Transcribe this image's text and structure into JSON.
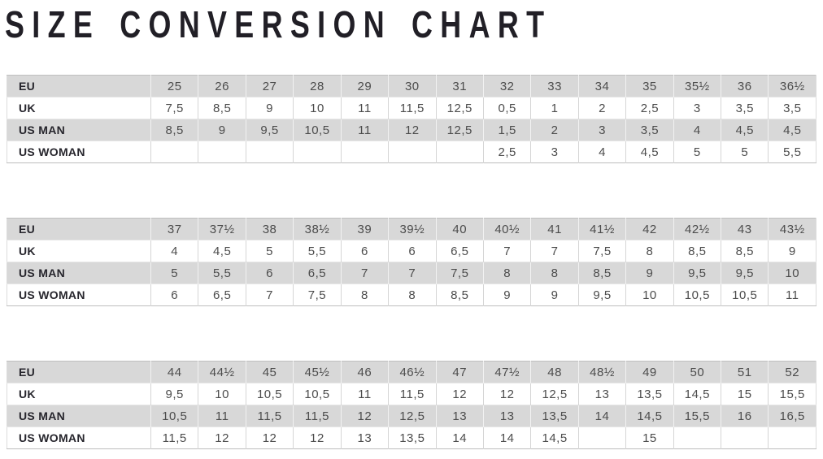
{
  "title": "SIZE CONVERSION CHART",
  "colors": {
    "background": "#ffffff",
    "title_text": "#211f26",
    "shaded_row": "#d8d8d8",
    "plain_row": "#ffffff",
    "label_text": "#26252c",
    "value_text": "#4c4c4c",
    "table_border": "#bfbfbf"
  },
  "row_labels": [
    "EU",
    "UK",
    "US MAN",
    "US WOMAN"
  ],
  "chart_data": [
    {
      "type": "table",
      "rows": [
        {
          "label": "EU",
          "values": [
            "25",
            "26",
            "27",
            "28",
            "29",
            "30",
            "31",
            "32",
            "33",
            "34",
            "35",
            "35½",
            "36",
            "36½"
          ]
        },
        {
          "label": "UK",
          "values": [
            "7,5",
            "8,5",
            "9",
            "10",
            "11",
            "11,5",
            "12,5",
            "0,5",
            "1",
            "2",
            "2,5",
            "3",
            "3,5",
            "3,5"
          ]
        },
        {
          "label": "US MAN",
          "values": [
            "8,5",
            "9",
            "9,5",
            "10,5",
            "11",
            "12",
            "12,5",
            "1,5",
            "2",
            "3",
            "3,5",
            "4",
            "4,5",
            "4,5"
          ]
        },
        {
          "label": "US WOMAN",
          "values": [
            "",
            "",
            "",
            "",
            "",
            "",
            "",
            "2,5",
            "3",
            "4",
            "4,5",
            "5",
            "5",
            "5,5"
          ]
        }
      ]
    },
    {
      "type": "table",
      "rows": [
        {
          "label": "EU",
          "values": [
            "37",
            "37½",
            "38",
            "38½",
            "39",
            "39½",
            "40",
            "40½",
            "41",
            "41½",
            "42",
            "42½",
            "43",
            "43½"
          ]
        },
        {
          "label": "UK",
          "values": [
            "4",
            "4,5",
            "5",
            "5,5",
            "6",
            "6",
            "6,5",
            "7",
            "7",
            "7,5",
            "8",
            "8,5",
            "8,5",
            "9"
          ]
        },
        {
          "label": "US MAN",
          "values": [
            "5",
            "5,5",
            "6",
            "6,5",
            "7",
            "7",
            "7,5",
            "8",
            "8",
            "8,5",
            "9",
            "9,5",
            "9,5",
            "10"
          ]
        },
        {
          "label": "US WOMAN",
          "values": [
            "6",
            "6,5",
            "7",
            "7,5",
            "8",
            "8",
            "8,5",
            "9",
            "9",
            "9,5",
            "10",
            "10,5",
            "10,5",
            "11"
          ]
        }
      ]
    },
    {
      "type": "table",
      "rows": [
        {
          "label": "EU",
          "values": [
            "44",
            "44½",
            "45",
            "45½",
            "46",
            "46½",
            "47",
            "47½",
            "48",
            "48½",
            "49",
            "50",
            "51",
            "52"
          ]
        },
        {
          "label": "UK",
          "values": [
            "9,5",
            "10",
            "10,5",
            "10,5",
            "11",
            "11,5",
            "12",
            "12",
            "12,5",
            "13",
            "13,5",
            "14,5",
            "15",
            "15,5"
          ]
        },
        {
          "label": "US MAN",
          "values": [
            "10,5",
            "11",
            "11,5",
            "11,5",
            "12",
            "12,5",
            "13",
            "13",
            "13,5",
            "14",
            "14,5",
            "15,5",
            "16",
            "16,5"
          ]
        },
        {
          "label": "US WOMAN",
          "values": [
            "11,5",
            "12",
            "12",
            "12",
            "13",
            "13,5",
            "14",
            "14",
            "14,5",
            "",
            "15",
            "",
            "",
            ""
          ]
        }
      ]
    }
  ]
}
